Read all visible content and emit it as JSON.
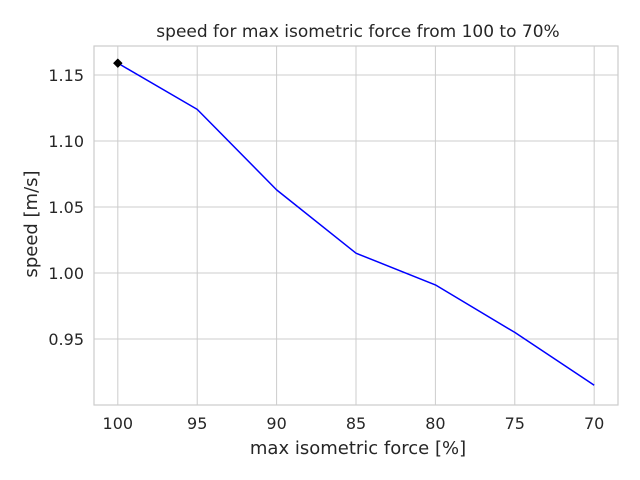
{
  "chart_data": {
    "type": "line",
    "title": "speed for max isometric force from 100 to 70%",
    "xlabel": "max isometric force [%]",
    "ylabel": "speed [m/s]",
    "x": [
      100,
      95,
      90,
      85,
      80,
      75,
      70
    ],
    "x_tick_labels": [
      "100",
      "95",
      "90",
      "85",
      "80",
      "75",
      "70"
    ],
    "x_axis_reversed": true,
    "xlim": [
      101.5,
      68.5
    ],
    "ylim": [
      0.9,
      1.172
    ],
    "y_ticks": [
      0.95,
      1.0,
      1.05,
      1.1,
      1.15
    ],
    "y_tick_labels": [
      "0.95",
      "1.00",
      "1.05",
      "1.10",
      "1.15"
    ],
    "grid": true,
    "series": [
      {
        "values": [
          1.159,
          1.124,
          1.063,
          1.015,
          0.991,
          0.955,
          0.915
        ],
        "color": "#0000ff"
      }
    ],
    "marker": {
      "x": 100,
      "y": 1.159,
      "shape": "diamond",
      "color": "#000000"
    }
  }
}
